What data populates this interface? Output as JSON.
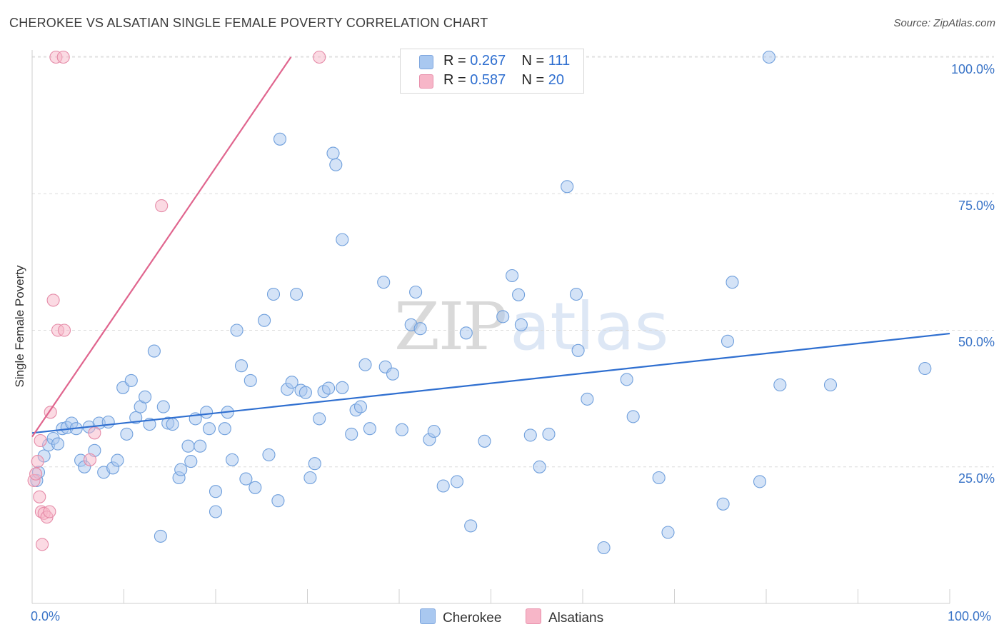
{
  "header": {
    "title": "CHEROKEE VS ALSATIAN SINGLE FEMALE POVERTY CORRELATION CHART",
    "source": "Source: ZipAtlas.com"
  },
  "watermark": {
    "zip": "ZIP",
    "atlas": "atlas"
  },
  "legend": {
    "rows": [
      {
        "r_label": "R = ",
        "r_value": "0.267",
        "n_label": "N = ",
        "n_value": "111",
        "color": "#a9c8f0"
      },
      {
        "r_label": "R = ",
        "r_value": "0.587",
        "n_label": "N = ",
        "n_value": "20",
        "color": "#f7b6c8"
      }
    ],
    "bottom": [
      "Cherokee",
      "Alsatians"
    ]
  },
  "chart_data": {
    "type": "scatter",
    "title": "CHEROKEE VS ALSATIAN SINGLE FEMALE POVERTY CORRELATION CHART",
    "xlabel": "",
    "ylabel": "Single Female Poverty",
    "xlim": [
      0,
      100
    ],
    "ylim": [
      0,
      100
    ],
    "x_tick_labels": [
      "0.0%",
      "100.0%"
    ],
    "y_tick_labels": [
      "25.0%",
      "50.0%",
      "75.0%",
      "100.0%"
    ],
    "y_ticks": [
      25,
      50,
      75,
      100
    ],
    "grid": true,
    "legend_position": "top-center",
    "colors": {
      "cherokee_fill": "#a9c8f0",
      "cherokee_line": "#2f6fd0",
      "alsatians_fill": "#f7b6c8",
      "alsatians_line": "#e0658e",
      "tick_text": "#3a74c7"
    },
    "series": [
      {
        "name": "Cherokee",
        "color": "#a9c8f0",
        "trend": {
          "x": [
            0,
            100
          ],
          "y": [
            31.2,
            49.4
          ]
        },
        "points": [
          [
            0.5,
            22.5
          ],
          [
            0.7,
            24.0
          ],
          [
            1.3,
            27.0
          ],
          [
            1.8,
            29.0
          ],
          [
            2.3,
            30.2
          ],
          [
            2.8,
            29.2
          ],
          [
            3.3,
            32.0
          ],
          [
            3.8,
            32.2
          ],
          [
            4.3,
            33.0
          ],
          [
            4.8,
            32.0
          ],
          [
            5.3,
            26.2
          ],
          [
            5.7,
            25.0
          ],
          [
            6.2,
            32.3
          ],
          [
            6.8,
            28.0
          ],
          [
            7.3,
            33.0
          ],
          [
            7.8,
            24.0
          ],
          [
            8.3,
            33.2
          ],
          [
            8.8,
            24.8
          ],
          [
            9.3,
            26.2
          ],
          [
            9.9,
            39.5
          ],
          [
            10.3,
            31.0
          ],
          [
            10.8,
            40.8
          ],
          [
            11.3,
            34.0
          ],
          [
            11.8,
            36.0
          ],
          [
            12.3,
            37.8
          ],
          [
            12.8,
            32.8
          ],
          [
            13.3,
            46.2
          ],
          [
            14.0,
            12.3
          ],
          [
            14.3,
            36.0
          ],
          [
            14.8,
            33.0
          ],
          [
            15.3,
            32.8
          ],
          [
            16.0,
            23.0
          ],
          [
            16.2,
            24.5
          ],
          [
            17.0,
            28.8
          ],
          [
            17.3,
            26.0
          ],
          [
            17.8,
            33.8
          ],
          [
            18.3,
            28.8
          ],
          [
            19.0,
            35.0
          ],
          [
            19.3,
            32.0
          ],
          [
            20.0,
            20.5
          ],
          [
            20.0,
            16.8
          ],
          [
            21.0,
            32.0
          ],
          [
            21.3,
            35.0
          ],
          [
            21.8,
            26.3
          ],
          [
            22.3,
            50.0
          ],
          [
            22.8,
            43.5
          ],
          [
            23.3,
            22.8
          ],
          [
            23.8,
            40.8
          ],
          [
            24.3,
            21.2
          ],
          [
            25.3,
            51.8
          ],
          [
            25.8,
            27.2
          ],
          [
            26.3,
            56.6
          ],
          [
            26.8,
            18.8
          ],
          [
            27.0,
            85.0
          ],
          [
            27.8,
            39.2
          ],
          [
            28.3,
            40.5
          ],
          [
            28.8,
            56.6
          ],
          [
            29.3,
            39.0
          ],
          [
            29.8,
            38.6
          ],
          [
            30.3,
            23.0
          ],
          [
            30.8,
            25.6
          ],
          [
            31.3,
            33.8
          ],
          [
            31.8,
            38.8
          ],
          [
            32.3,
            39.4
          ],
          [
            32.8,
            82.4
          ],
          [
            33.1,
            80.3
          ],
          [
            33.8,
            39.5
          ],
          [
            33.8,
            66.6
          ],
          [
            34.8,
            31.0
          ],
          [
            35.3,
            35.4
          ],
          [
            35.8,
            36.0
          ],
          [
            36.3,
            43.7
          ],
          [
            36.8,
            32.0
          ],
          [
            38.3,
            58.8
          ],
          [
            38.5,
            43.3
          ],
          [
            39.3,
            42.0
          ],
          [
            40.3,
            31.8
          ],
          [
            41.3,
            51.0
          ],
          [
            41.8,
            57.0
          ],
          [
            42.3,
            50.3
          ],
          [
            43.3,
            30.0
          ],
          [
            43.8,
            31.5
          ],
          [
            44.8,
            21.5
          ],
          [
            46.3,
            22.3
          ],
          [
            47.3,
            49.5
          ],
          [
            47.8,
            14.2
          ],
          [
            49.3,
            29.7
          ],
          [
            51.3,
            52.5
          ],
          [
            52.3,
            60.0
          ],
          [
            53.0,
            56.5
          ],
          [
            53.3,
            51.0
          ],
          [
            54.3,
            30.8
          ],
          [
            55.3,
            25.0
          ],
          [
            56.3,
            31.0
          ],
          [
            58.3,
            76.3
          ],
          [
            59.3,
            56.6
          ],
          [
            59.5,
            46.3
          ],
          [
            60.5,
            37.4
          ],
          [
            62.3,
            10.2
          ],
          [
            64.8,
            41.0
          ],
          [
            65.5,
            34.2
          ],
          [
            68.3,
            23.0
          ],
          [
            69.3,
            13.0
          ],
          [
            75.3,
            18.2
          ],
          [
            75.8,
            48.0
          ],
          [
            76.3,
            58.8
          ],
          [
            79.3,
            22.3
          ],
          [
            80.3,
            100.0
          ],
          [
            81.5,
            40.0
          ],
          [
            87.0,
            40.0
          ],
          [
            97.3,
            43.0
          ]
        ]
      },
      {
        "name": "Alsatians",
        "color": "#f7b6c8",
        "trend": {
          "x": [
            0,
            28.2
          ],
          "y": [
            30.5,
            100
          ]
        },
        "points": [
          [
            0.2,
            22.5
          ],
          [
            0.4,
            23.7
          ],
          [
            0.6,
            26.0
          ],
          [
            0.8,
            19.5
          ],
          [
            0.9,
            29.8
          ],
          [
            1.0,
            16.8
          ],
          [
            1.1,
            10.8
          ],
          [
            1.3,
            16.5
          ],
          [
            1.6,
            15.8
          ],
          [
            1.9,
            16.8
          ],
          [
            2.0,
            35.0
          ],
          [
            2.3,
            55.5
          ],
          [
            2.6,
            100.0
          ],
          [
            2.8,
            50.0
          ],
          [
            3.4,
            100.0
          ],
          [
            3.5,
            50.0
          ],
          [
            6.3,
            26.3
          ],
          [
            6.8,
            31.2
          ],
          [
            14.1,
            72.8
          ],
          [
            31.3,
            100.0
          ]
        ]
      }
    ]
  }
}
